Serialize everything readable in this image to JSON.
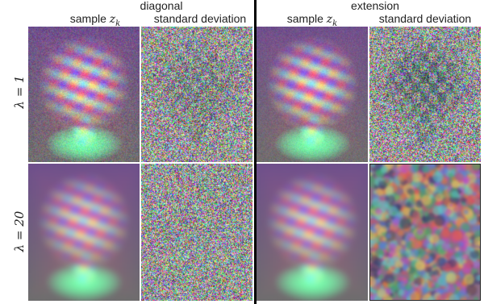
{
  "groups": [
    {
      "title": "diagonal"
    },
    {
      "title": "extension"
    }
  ],
  "column_headers": {
    "sample_label": "sample ",
    "sample_var": "z",
    "sample_sub": "k",
    "std_label": "standard deviation"
  },
  "rows": [
    {
      "label": "λ = 1"
    },
    {
      "label": "λ = 20"
    }
  ],
  "panels": [
    {
      "name": "diag-sample-l1",
      "kind": "brain",
      "noise": 0.2,
      "blur": 1
    },
    {
      "name": "diag-std-l1",
      "kind": "noise",
      "noise": 1.0,
      "structure": 0.35
    },
    {
      "name": "ext-sample-l1",
      "kind": "brain",
      "noise": 0.12,
      "blur": 1
    },
    {
      "name": "ext-std-l1",
      "kind": "noise",
      "noise": 0.8,
      "structure": 0.6
    },
    {
      "name": "diag-sample-l20",
      "kind": "brain",
      "noise": 0.03,
      "blur": 3
    },
    {
      "name": "diag-std-l20",
      "kind": "noise",
      "noise": 1.0,
      "structure": 0.05
    },
    {
      "name": "ext-sample-l20",
      "kind": "brain",
      "noise": 0.03,
      "blur": 3
    },
    {
      "name": "ext-std-l20",
      "kind": "blob",
      "noise": 1.0,
      "structure": 0.0
    }
  ]
}
